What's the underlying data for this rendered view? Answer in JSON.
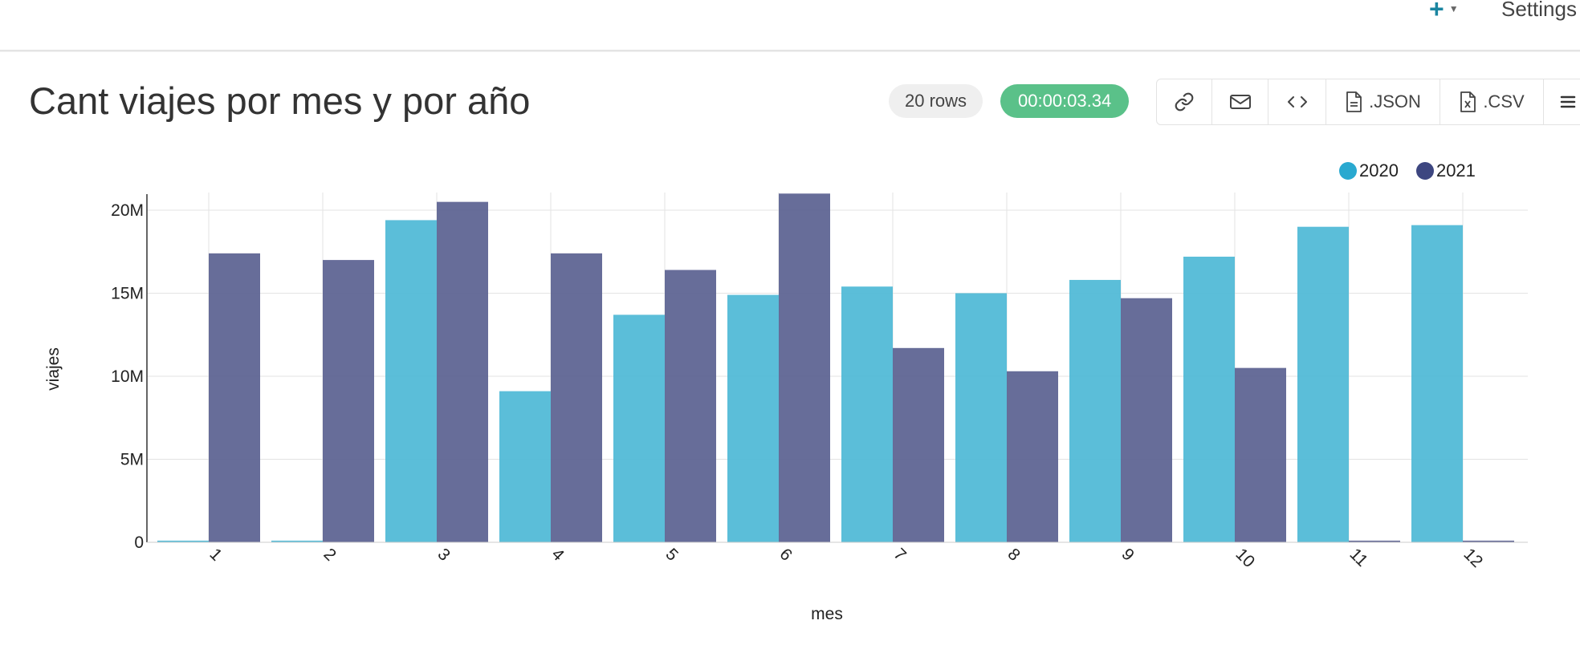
{
  "topbar": {
    "settings_label": "Settings"
  },
  "title": "Cant viajes por mes y por año",
  "badges": {
    "rows": "20 rows",
    "time": "00:00:03.34"
  },
  "toolbar": {
    "json_label": ".JSON",
    "csv_label": ".CSV"
  },
  "icons": [
    "plus-icon",
    "caret-down-icon",
    "link-icon",
    "mail-icon",
    "code-icon",
    "file-icon",
    "csv-file-icon",
    "menu-icon"
  ],
  "colors": {
    "series_2020": "#4db8d6",
    "series_2021": "#5a6190",
    "time_badge": "#5ac189",
    "accent": "#1a85a0"
  },
  "chart_data": {
    "type": "bar",
    "xlabel": "mes",
    "ylabel": "viajes",
    "categories": [
      "1",
      "2",
      "3",
      "4",
      "5",
      "6",
      "7",
      "8",
      "9",
      "10",
      "11",
      "12"
    ],
    "series": [
      {
        "name": "2020",
        "values": [
          100000,
          100000,
          19400000,
          9100000,
          13700000,
          14900000,
          15400000,
          15000000,
          15800000,
          17200000,
          19000000,
          19100000
        ]
      },
      {
        "name": "2021",
        "values": [
          17400000,
          17000000,
          20500000,
          17400000,
          16400000,
          21000000,
          11700000,
          10300000,
          14700000,
          10500000,
          100000,
          100000
        ]
      }
    ],
    "yticks": [
      "0",
      "5M",
      "10M",
      "15M",
      "20M"
    ],
    "ylim": [
      0,
      21000000
    ],
    "grid": true,
    "legend_position": "top-right"
  }
}
